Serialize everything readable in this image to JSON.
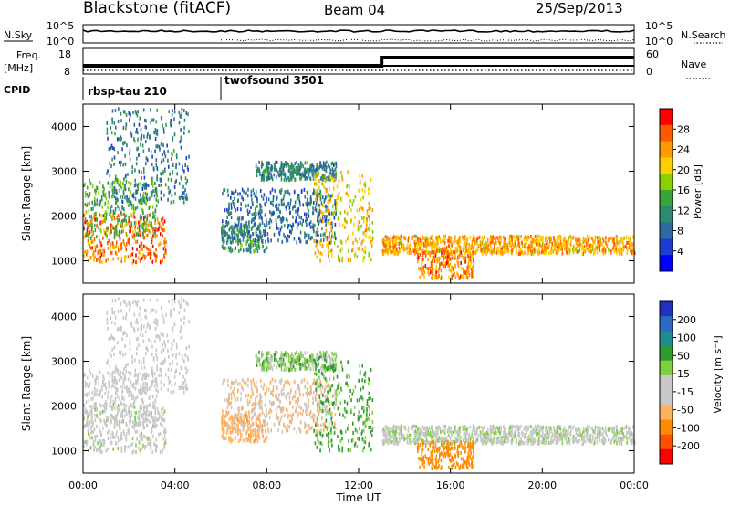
{
  "header": {
    "station": "Blackstone (fitACF)",
    "beam": "Beam 04",
    "date": "25/Sep/2013"
  },
  "summary": {
    "nsky_label": "N.Sky",
    "nsky_ticks": [
      "10^5",
      "10^0"
    ],
    "nsearch_label": "N.Search",
    "nsearch_ticks": [
      "10^5",
      "10^0"
    ],
    "freq_label_1": "Freq.",
    "freq_label_2": "[MHz]",
    "freq_ticks": [
      "18",
      "8"
    ],
    "nave_label": "Nave",
    "nave_ticks": [
      "60",
      "0"
    ],
    "cpid_label": "CPID",
    "cpid_segments": [
      {
        "name": "rbsp-tau 210",
        "start_hour": 0
      },
      {
        "name": "twofsound 3501",
        "start_hour": 6
      }
    ],
    "nave_step_hour": 13
  },
  "panels": {
    "ylabel": "Slant Range [km]",
    "y_ticks": [
      "4000",
      "3000",
      "2000",
      "1000"
    ],
    "x_ticks": [
      "00:00",
      "04:00",
      "08:00",
      "12:00",
      "16:00",
      "20:00",
      "00:00"
    ],
    "xlabel": "Time UT"
  },
  "colorbars": {
    "power": {
      "label": "Power [dB]",
      "ticks": [
        "28",
        "24",
        "20",
        "16",
        "12",
        "8",
        "4"
      ],
      "colors": [
        "#ff0000",
        "#ff5a00",
        "#ff9a00",
        "#ffd000",
        "#8ccf00",
        "#3aa43a",
        "#2e8a6e",
        "#2e6aa0",
        "#1e3cd0",
        "#0000ff"
      ]
    },
    "velocity": {
      "label": "Velocity [m s⁻¹]",
      "ticks": [
        "200",
        "100",
        "50",
        "15",
        "-15",
        "-50",
        "-100",
        "-200"
      ],
      "colors": [
        "#2030c0",
        "#2a6ac0",
        "#1e8c8c",
        "#2f9a2f",
        "#7fd040",
        "#c8c8c8",
        "#c8c8c8",
        "#ffb060",
        "#ff8c00",
        "#ff5000",
        "#ff0000"
      ]
    }
  },
  "chart_data": {
    "type": "heatmap",
    "title": "Blackstone (fitACF)",
    "x_unit": "hours UT",
    "xlim": [
      0,
      24
    ],
    "ylim": [
      500,
      4500
    ],
    "ylabel": "Slant Range [km]",
    "xlabel": "Time UT",
    "echo_bands": [
      {
        "t0": 0,
        "t1": 3.6,
        "r0": 950,
        "r1": 2050,
        "power": 27,
        "velocity": 0
      },
      {
        "t0": 0,
        "t1": 3.2,
        "r0": 1500,
        "r1": 2800,
        "power": 14,
        "velocity": -5
      },
      {
        "t0": 1.0,
        "t1": 4.6,
        "r0": 2300,
        "r1": 4400,
        "power": 9,
        "velocity": -10
      },
      {
        "t0": 6.0,
        "t1": 8.0,
        "r0": 1200,
        "r1": 1800,
        "power": 12,
        "velocity": -60
      },
      {
        "t0": 6.0,
        "t1": 11.0,
        "r0": 1400,
        "r1": 2600,
        "power": 8,
        "velocity": -30
      },
      {
        "t0": 7.5,
        "t1": 11.0,
        "r0": 2800,
        "r1": 3200,
        "power": 10,
        "velocity": 20
      },
      {
        "t0": 10.0,
        "t1": 12.6,
        "r0": 1000,
        "r1": 3000,
        "power": 22,
        "velocity": 40
      },
      {
        "t0": 13.0,
        "t1": 24,
        "r0": 1150,
        "r1": 1550,
        "power": 24,
        "velocity": 5
      },
      {
        "t0": 14.5,
        "t1": 17.0,
        "r0": 600,
        "r1": 1200,
        "power": 26,
        "velocity": -120
      }
    ]
  }
}
